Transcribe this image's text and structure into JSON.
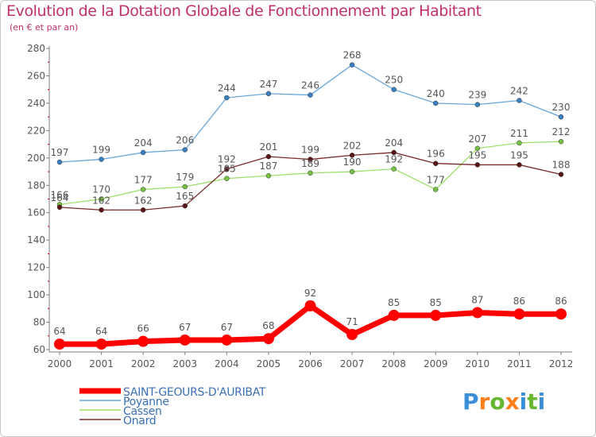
{
  "title": "Evolution de la Dotation Globale de Fonctionnement par Habitant",
  "subtitle": "(en € et par an)",
  "logo_text": "Proxiti",
  "colors": {
    "axis": "#7f7f7f",
    "grid_tick": "#cc0000",
    "label": "#555555",
    "title": "#c0306a"
  },
  "chart_data": {
    "type": "line",
    "title": "Evolution de la Dotation Globale de Fonctionnement par Habitant",
    "subtitle": "(en € et par an)",
    "x": [
      "2000",
      "2001",
      "2002",
      "2003",
      "2004",
      "2005",
      "2006",
      "2007",
      "2008",
      "2009",
      "2010",
      "2011",
      "2012"
    ],
    "ylim": [
      60,
      280
    ],
    "yticks": [
      60,
      80,
      100,
      120,
      140,
      160,
      180,
      200,
      220,
      240,
      260,
      280
    ],
    "grid": false,
    "legend_position": "bottom-left",
    "series": [
      {
        "name": "SAINT-GEOURS-D'AURIBAT",
        "color": "#ff0000",
        "marker": "#ff0000",
        "width": "thick",
        "values": [
          64,
          64,
          66,
          67,
          67,
          68,
          92,
          71,
          85,
          85,
          87,
          86,
          86
        ]
      },
      {
        "name": "Poyanne",
        "color": "#6aa7da",
        "marker": "#3a7fc2",
        "width": "thin",
        "values": [
          197,
          199,
          204,
          206,
          244,
          247,
          246,
          268,
          250,
          240,
          239,
          242,
          230
        ]
      },
      {
        "name": "Cassen",
        "color": "#9ee06a",
        "marker": "#76c043",
        "width": "thin",
        "values": [
          166,
          170,
          177,
          179,
          185,
          187,
          189,
          190,
          192,
          177,
          207,
          211,
          212
        ]
      },
      {
        "name": "Onard",
        "color": "#7a2a2a",
        "marker": "#5a1515",
        "width": "thin",
        "values": [
          164,
          162,
          162,
          165,
          192,
          201,
          199,
          202,
          204,
          196,
          195,
          195,
          188
        ]
      }
    ]
  }
}
